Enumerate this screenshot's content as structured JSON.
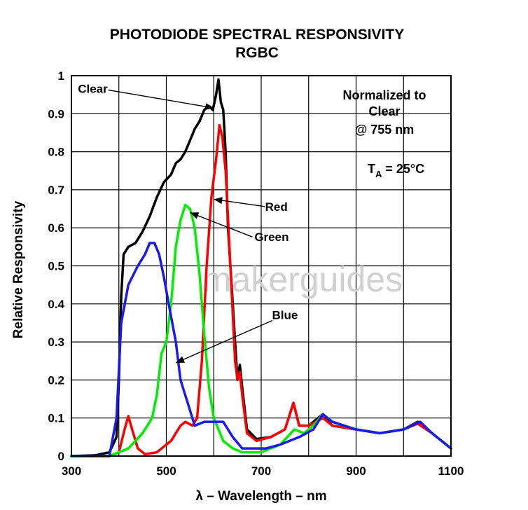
{
  "chart_data": {
    "type": "line",
    "title": "PHOTODIODE SPECTRAL RESPONSIVITY",
    "subtitle": "RGBC",
    "xlabel": "λ – Wavelength – nm",
    "ylabel": "Relative Responsivity",
    "xlim": [
      300,
      1100
    ],
    "ylim": [
      0,
      1
    ],
    "x_ticks": [
      "300",
      "500",
      "700",
      "900",
      "1100"
    ],
    "x_tick_values": [
      300,
      500,
      700,
      900,
      1100
    ],
    "y_ticks": [
      "0",
      "0.1",
      "0.2",
      "0.3",
      "0.4",
      "0.5",
      "0.6",
      "0.7",
      "0.8",
      "0.9",
      "1"
    ],
    "y_tick_values": [
      0,
      0.1,
      0.2,
      0.3,
      0.4,
      0.5,
      0.6,
      0.7,
      0.8,
      0.9,
      1
    ],
    "grid": true,
    "info_lines": [
      "Normalized to",
      "Clear",
      "@ 755 nm"
    ],
    "temp_label": {
      "main": "T",
      "sub": "A",
      "rest": " = 25°C"
    },
    "watermark": "makerguides",
    "series": [
      {
        "name": "Clear",
        "color": "#000000",
        "points": [
          [
            300,
            0
          ],
          [
            350,
            0.002
          ],
          [
            380,
            0.01
          ],
          [
            395,
            0.05
          ],
          [
            400,
            0.2
          ],
          [
            405,
            0.42
          ],
          [
            410,
            0.53
          ],
          [
            420,
            0.55
          ],
          [
            435,
            0.56
          ],
          [
            450,
            0.59
          ],
          [
            465,
            0.63
          ],
          [
            480,
            0.68
          ],
          [
            495,
            0.72
          ],
          [
            510,
            0.74
          ],
          [
            520,
            0.77
          ],
          [
            530,
            0.78
          ],
          [
            540,
            0.8
          ],
          [
            550,
            0.83
          ],
          [
            560,
            0.86
          ],
          [
            570,
            0.88
          ],
          [
            580,
            0.91
          ],
          [
            590,
            0.92
          ],
          [
            598,
            0.91
          ],
          [
            605,
            0.95
          ],
          [
            610,
            0.99
          ],
          [
            615,
            0.93
          ],
          [
            620,
            0.91
          ],
          [
            625,
            0.8
          ],
          [
            630,
            0.6
          ],
          [
            640,
            0.4
          ],
          [
            650,
            0.2
          ],
          [
            655,
            0.24
          ],
          [
            660,
            0.18
          ],
          [
            670,
            0.07
          ],
          [
            690,
            0.045
          ],
          [
            720,
            0.05
          ],
          [
            750,
            0.07
          ],
          [
            768,
            0.14
          ],
          [
            780,
            0.08
          ],
          [
            800,
            0.08
          ],
          [
            830,
            0.11
          ],
          [
            850,
            0.08
          ],
          [
            900,
            0.07
          ],
          [
            950,
            0.06
          ],
          [
            1000,
            0.07
          ],
          [
            1030,
            0.09
          ],
          [
            1060,
            0.06
          ],
          [
            1100,
            0.02
          ]
        ]
      },
      {
        "name": "Red",
        "color": "#ff0000",
        "points": [
          [
            300,
            0
          ],
          [
            380,
            0
          ],
          [
            400,
            0.01
          ],
          [
            412,
            0.07
          ],
          [
            420,
            0.105
          ],
          [
            428,
            0.07
          ],
          [
            440,
            0.02
          ],
          [
            455,
            0.005
          ],
          [
            480,
            0.01
          ],
          [
            510,
            0.04
          ],
          [
            530,
            0.08
          ],
          [
            540,
            0.09
          ],
          [
            555,
            0.08
          ],
          [
            565,
            0.1
          ],
          [
            575,
            0.25
          ],
          [
            585,
            0.5
          ],
          [
            595,
            0.68
          ],
          [
            605,
            0.78
          ],
          [
            612,
            0.87
          ],
          [
            618,
            0.84
          ],
          [
            625,
            0.75
          ],
          [
            635,
            0.5
          ],
          [
            645,
            0.25
          ],
          [
            650,
            0.2
          ],
          [
            655,
            0.22
          ],
          [
            660,
            0.16
          ],
          [
            670,
            0.06
          ],
          [
            690,
            0.04
          ],
          [
            720,
            0.05
          ],
          [
            750,
            0.07
          ],
          [
            768,
            0.14
          ],
          [
            780,
            0.08
          ],
          [
            800,
            0.08
          ],
          [
            830,
            0.1
          ],
          [
            850,
            0.08
          ],
          [
            900,
            0.07
          ],
          [
            950,
            0.06
          ],
          [
            1000,
            0.07
          ],
          [
            1030,
            0.085
          ],
          [
            1060,
            0.06
          ],
          [
            1100,
            0.02
          ]
        ]
      },
      {
        "name": "Green",
        "color": "#00ee00",
        "points": [
          [
            300,
            0
          ],
          [
            380,
            0
          ],
          [
            420,
            0.02
          ],
          [
            450,
            0.06
          ],
          [
            470,
            0.1
          ],
          [
            480,
            0.16
          ],
          [
            490,
            0.27
          ],
          [
            500,
            0.3
          ],
          [
            510,
            0.4
          ],
          [
            520,
            0.55
          ],
          [
            530,
            0.62
          ],
          [
            540,
            0.66
          ],
          [
            550,
            0.65
          ],
          [
            560,
            0.6
          ],
          [
            570,
            0.48
          ],
          [
            580,
            0.32
          ],
          [
            590,
            0.18
          ],
          [
            600,
            0.1
          ],
          [
            620,
            0.04
          ],
          [
            640,
            0.02
          ],
          [
            660,
            0.01
          ],
          [
            680,
            0.01
          ],
          [
            700,
            0.01
          ],
          [
            740,
            0.03
          ],
          [
            770,
            0.07
          ],
          [
            790,
            0.06
          ],
          [
            810,
            0.08
          ],
          [
            830,
            0.11
          ],
          [
            850,
            0.09
          ],
          [
            900,
            0.07
          ],
          [
            950,
            0.06
          ],
          [
            1000,
            0.07
          ],
          [
            1035,
            0.09
          ],
          [
            1060,
            0.06
          ],
          [
            1100,
            0.02
          ]
        ]
      },
      {
        "name": "Blue",
        "color": "#1a1aee",
        "points": [
          [
            300,
            0
          ],
          [
            380,
            0
          ],
          [
            395,
            0.1
          ],
          [
            405,
            0.35
          ],
          [
            420,
            0.45
          ],
          [
            440,
            0.5
          ],
          [
            455,
            0.53
          ],
          [
            465,
            0.56
          ],
          [
            475,
            0.56
          ],
          [
            485,
            0.53
          ],
          [
            495,
            0.47
          ],
          [
            505,
            0.4
          ],
          [
            520,
            0.3
          ],
          [
            530,
            0.2
          ],
          [
            545,
            0.14
          ],
          [
            560,
            0.08
          ],
          [
            580,
            0.09
          ],
          [
            600,
            0.09
          ],
          [
            620,
            0.09
          ],
          [
            640,
            0.05
          ],
          [
            660,
            0.02
          ],
          [
            680,
            0.02
          ],
          [
            710,
            0.02
          ],
          [
            740,
            0.03
          ],
          [
            780,
            0.05
          ],
          [
            810,
            0.07
          ],
          [
            830,
            0.11
          ],
          [
            850,
            0.09
          ],
          [
            900,
            0.07
          ],
          [
            950,
            0.06
          ],
          [
            1000,
            0.07
          ],
          [
            1035,
            0.09
          ],
          [
            1060,
            0.06
          ],
          [
            1100,
            0.02
          ]
        ]
      }
    ],
    "annotations": [
      {
        "label": "Clear",
        "series": "Clear",
        "text_x": 345,
        "text_y": 0.955,
        "arrow_to": [
          600,
          0.915
        ]
      },
      {
        "label": "Red",
        "series": "Red",
        "text_x": 732,
        "text_y": 0.645,
        "arrow_to": [
          600,
          0.675
        ]
      },
      {
        "label": "Green",
        "series": "Green",
        "text_x": 722,
        "text_y": 0.565,
        "arrow_to": [
          550,
          0.64
        ]
      },
      {
        "label": "Blue",
        "series": "Blue",
        "text_x": 750,
        "text_y": 0.36,
        "arrow_to": [
          520,
          0.245
        ]
      }
    ]
  }
}
